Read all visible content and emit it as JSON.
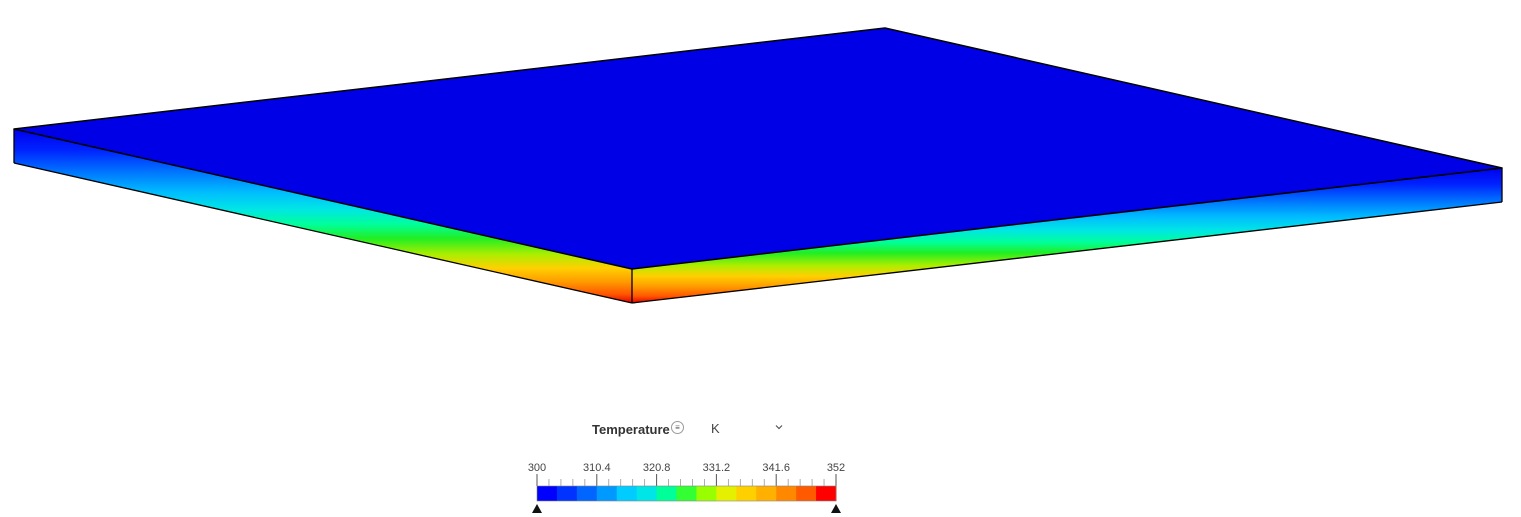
{
  "legend": {
    "title": "Temperature",
    "unit": "K",
    "menu_icon": "list-menu-icon",
    "dropdown_icon": "chevron-down-icon",
    "min": 300,
    "max": 352,
    "tick_labels": [
      "300",
      "310.4",
      "320.8",
      "331.2",
      "341.6",
      "352"
    ],
    "colors": [
      "#0000ff",
      "#0033ff",
      "#0066ff",
      "#0099ff",
      "#00ccff",
      "#00e5e5",
      "#00ff99",
      "#33ff33",
      "#99ff00",
      "#e5f000",
      "#ffd000",
      "#ffb000",
      "#ff8800",
      "#ff5a00",
      "#ff0000"
    ]
  },
  "plate": {
    "top_color": "#0000e6",
    "edge_outline_color": "#000000"
  }
}
